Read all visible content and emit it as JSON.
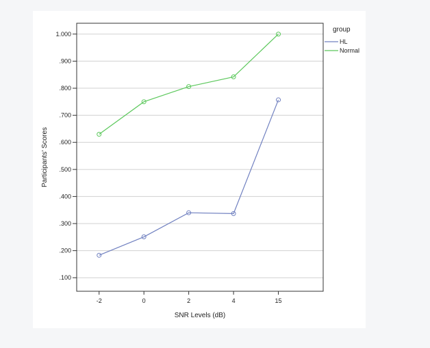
{
  "chart_data": {
    "type": "line",
    "categories": [
      "-2",
      "0",
      "2",
      "4",
      "15"
    ],
    "series": [
      {
        "name": "HL",
        "values": [
          0.183,
          0.251,
          0.34,
          0.337,
          0.757
        ],
        "color": "#7080c0"
      },
      {
        "name": "Normal",
        "values": [
          0.63,
          0.75,
          0.806,
          0.842,
          1.0
        ],
        "color": "#5cc85c"
      }
    ],
    "xlabel": "SNR Levels (dB)",
    "ylabel": "Participants' Scores",
    "ylim": [
      0.05,
      1.04
    ],
    "yticks": [
      {
        "value": 1.0,
        "label": "1.000"
      },
      {
        "value": 0.9,
        "label": ".900"
      },
      {
        "value": 0.8,
        "label": ".800"
      },
      {
        "value": 0.7,
        "label": ".700"
      },
      {
        "value": 0.6,
        "label": ".600"
      },
      {
        "value": 0.5,
        "label": ".500"
      },
      {
        "value": 0.4,
        "label": ".400"
      },
      {
        "value": 0.3,
        "label": ".300"
      },
      {
        "value": 0.2,
        "label": ".200"
      },
      {
        "value": 0.1,
        "label": ".100"
      }
    ],
    "grid": true,
    "legend": {
      "title": "group",
      "placement": "top-right"
    },
    "marker": "open-circle"
  }
}
